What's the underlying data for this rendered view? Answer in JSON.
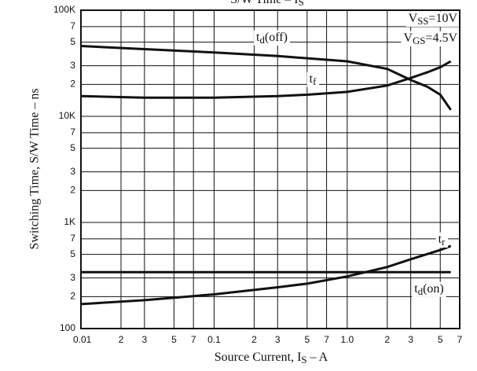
{
  "chart_data": {
    "type": "line",
    "title": [
      "S/W Time – I",
      "S"
    ],
    "x_label": [
      "Source Current, I",
      "S",
      " – A"
    ],
    "y_label": "Switching Time, S/W Time – ns",
    "xscale": "log",
    "yscale": "log",
    "grid": true,
    "xlim": [
      0.01,
      7
    ],
    "ylim": [
      100,
      100000
    ],
    "xticks": [
      0.01,
      {
        "value": 0.02,
        "label": "2"
      },
      {
        "value": 0.03,
        "label": "3"
      },
      {
        "value": 0.05,
        "label": "5"
      },
      {
        "value": 0.07,
        "label": "7"
      },
      0.1,
      {
        "value": 0.2,
        "label": "2"
      },
      {
        "value": 0.3,
        "label": "3"
      },
      {
        "value": 0.5,
        "label": "5"
      },
      {
        "value": 0.7,
        "label": "7"
      },
      {
        "value": 1,
        "label": "1.0"
      },
      2,
      3,
      5,
      7
    ],
    "yticks": [
      100,
      {
        "value": 200,
        "label": "2"
      },
      {
        "value": 300,
        "label": "3"
      },
      {
        "value": 500,
        "label": "5"
      },
      {
        "value": 700,
        "label": "7"
      },
      {
        "value": 1000,
        "label": "1K"
      },
      {
        "value": 2000,
        "label": "2"
      },
      {
        "value": 3000,
        "label": "3"
      },
      {
        "value": 5000,
        "label": "5"
      },
      {
        "value": 7000,
        "label": "7"
      },
      {
        "value": 10000,
        "label": "10K"
      },
      {
        "value": 20000,
        "label": "2"
      },
      {
        "value": 30000,
        "label": "3"
      },
      {
        "value": 50000,
        "label": "5"
      },
      {
        "value": 70000,
        "label": "7"
      },
      {
        "value": 100000,
        "label": "100K"
      }
    ],
    "series": [
      {
        "label": [
          "t",
          "d",
          "(off)"
        ],
        "color": "#111111",
        "x": [
          0.01,
          0.03,
          0.1,
          0.3,
          1,
          2,
          3,
          4,
          5,
          6
        ],
        "values": [
          46000,
          43000,
          40000,
          37000,
          33000,
          28000,
          22000,
          19000,
          16000,
          11500
        ]
      },
      {
        "label": [
          "t",
          "f",
          ""
        ],
        "color": "#111111",
        "x": [
          0.01,
          0.03,
          0.1,
          0.3,
          0.5,
          1,
          2,
          3,
          4,
          5,
          6
        ],
        "values": [
          15500,
          15000,
          15000,
          15500,
          16000,
          17000,
          19500,
          23000,
          26000,
          29000,
          33000
        ]
      },
      {
        "label": [
          "t",
          "r",
          ""
        ],
        "color": "#111111",
        "x": [
          0.01,
          0.03,
          0.1,
          0.3,
          0.5,
          1,
          2,
          3,
          5,
          6
        ],
        "values": [
          170,
          185,
          210,
          245,
          265,
          310,
          380,
          450,
          550,
          600
        ]
      },
      {
        "label": [
          "t",
          "d",
          "(on)"
        ],
        "color": "#111111",
        "x": [
          0.01,
          6
        ],
        "values": [
          340,
          340
        ]
      }
    ],
    "annotations": [
      [
        "V",
        "SS",
        "=10V"
      ],
      [
        "V",
        "GS",
        "=4.5V"
      ]
    ]
  }
}
